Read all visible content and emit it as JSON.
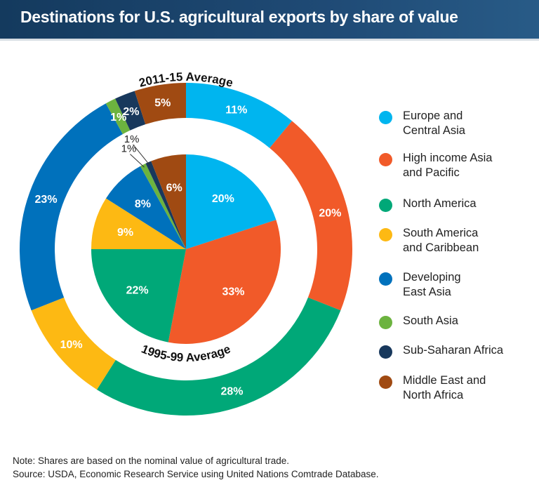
{
  "title": "Destinations for U.S. agricultural exports by share of value",
  "chart_data": {
    "type": "pie",
    "title": "Destinations for U.S. agricultural exports by share of value",
    "categories": [
      "Europe and\nCentral Asia",
      "High income Asia\nand Pacific",
      "North America",
      "South America\nand Caribbean",
      "Developing\nEast Asia",
      "South Asia",
      "Sub-Saharan Africa",
      "Middle East and\nNorth Africa"
    ],
    "colors": [
      "#00b5ef",
      "#f15a29",
      "#00a878",
      "#fdb913",
      "#0071bc",
      "#6cb33f",
      "#18385c",
      "#a04a12"
    ],
    "series": [
      {
        "name": "2011-15 Average",
        "ring": "outer",
        "values": [
          11,
          20,
          28,
          10,
          23,
          1,
          2,
          5
        ]
      },
      {
        "name": "1995-99 Average",
        "ring": "inner",
        "values": [
          20,
          33,
          22,
          9,
          8,
          1,
          1,
          6
        ]
      }
    ],
    "legend": "right"
  },
  "notes": {
    "note": "Note: Shares are based on the nominal value of agricultural trade.",
    "source": "Source: USDA, Economic Research Service using United Nations Comtrade Database."
  }
}
